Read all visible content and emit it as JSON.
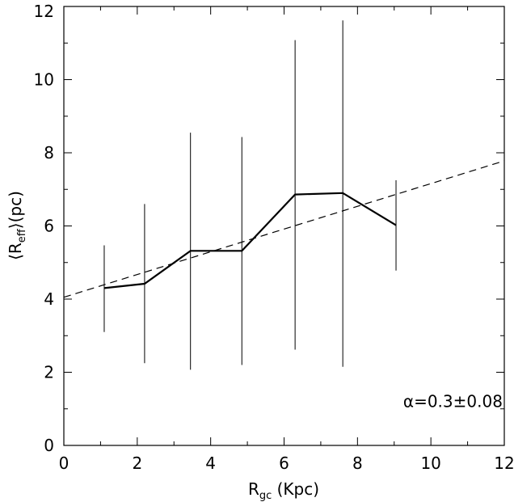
{
  "chart_data": {
    "type": "line",
    "xlabel": {
      "main": "R",
      "sub": "gc",
      "rest": " (Kpc)"
    },
    "ylabel": {
      "open": "⟨R",
      "sub": "eff",
      "rest": "⟩(pc)"
    },
    "xlim": [
      0,
      12
    ],
    "ylim": [
      0,
      12
    ],
    "xticks": [
      0,
      2,
      4,
      6,
      8,
      10,
      12
    ],
    "yticks": [
      0,
      2,
      4,
      6,
      8,
      10,
      12
    ],
    "xticks_minor": [
      1,
      3,
      5,
      7,
      9,
      11
    ],
    "yticks_minor": [
      1,
      3,
      5,
      7,
      9,
      11
    ],
    "grid": false,
    "series": [
      {
        "style": "solid",
        "x": [
          1.1,
          2.2,
          3.45,
          4.85,
          6.3,
          7.6,
          9.05
        ],
        "y": [
          4.3,
          4.42,
          5.32,
          5.32,
          6.86,
          6.9,
          6.02
        ],
        "yerr_low": [
          3.1,
          2.25,
          2.07,
          2.2,
          2.62,
          2.15,
          4.78
        ],
        "yerr_high": [
          5.47,
          6.6,
          8.55,
          8.43,
          11.08,
          11.62,
          7.25
        ]
      },
      {
        "style": "dashed",
        "x": [
          0,
          12
        ],
        "y": [
          4.05,
          7.78
        ]
      }
    ],
    "annotation": {
      "text": "α=0.3±0.08",
      "x": 10.6,
      "y": 1.2
    }
  }
}
